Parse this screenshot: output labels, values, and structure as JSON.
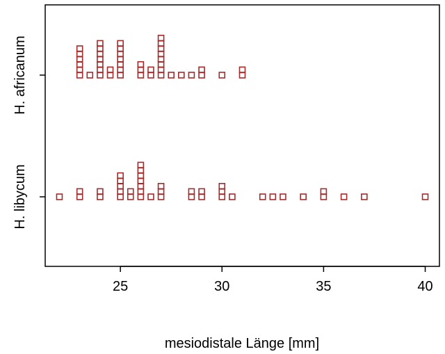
{
  "chart_data": {
    "type": "scatter",
    "title": "",
    "xlabel": "mesiodistale Länge [mm]",
    "ylabel": "",
    "xlim": [
      21.3,
      40.7
    ],
    "xticks": [
      25,
      30,
      35,
      40
    ],
    "grid": false,
    "legend": "none",
    "marker_color": "#A52A2A",
    "stack_method": "stack",
    "categories": [
      "H. libycum",
      "H. africanum"
    ],
    "series": [
      {
        "name": "H. africanum",
        "values": [
          23,
          23,
          23,
          23,
          23,
          23,
          23.5,
          24,
          24,
          24,
          24,
          24,
          24,
          24,
          24.5,
          24.5,
          25,
          25,
          25,
          25,
          25,
          25,
          25,
          26,
          26,
          26,
          26.5,
          26.5,
          27,
          27,
          27,
          27,
          27,
          27,
          27,
          27,
          27.5,
          28,
          28.5,
          29,
          29,
          30,
          31,
          31
        ]
      },
      {
        "name": "H. libycum",
        "values": [
          22,
          23,
          23,
          24,
          24,
          25,
          25,
          25,
          25,
          25,
          25.5,
          25.5,
          26,
          26,
          26,
          26,
          26,
          26,
          26,
          26.5,
          27,
          27,
          27,
          28.5,
          28.5,
          29,
          29,
          30,
          30,
          30,
          30.5,
          32,
          32.5,
          33,
          34,
          35,
          35,
          36,
          37,
          40
        ]
      }
    ]
  }
}
